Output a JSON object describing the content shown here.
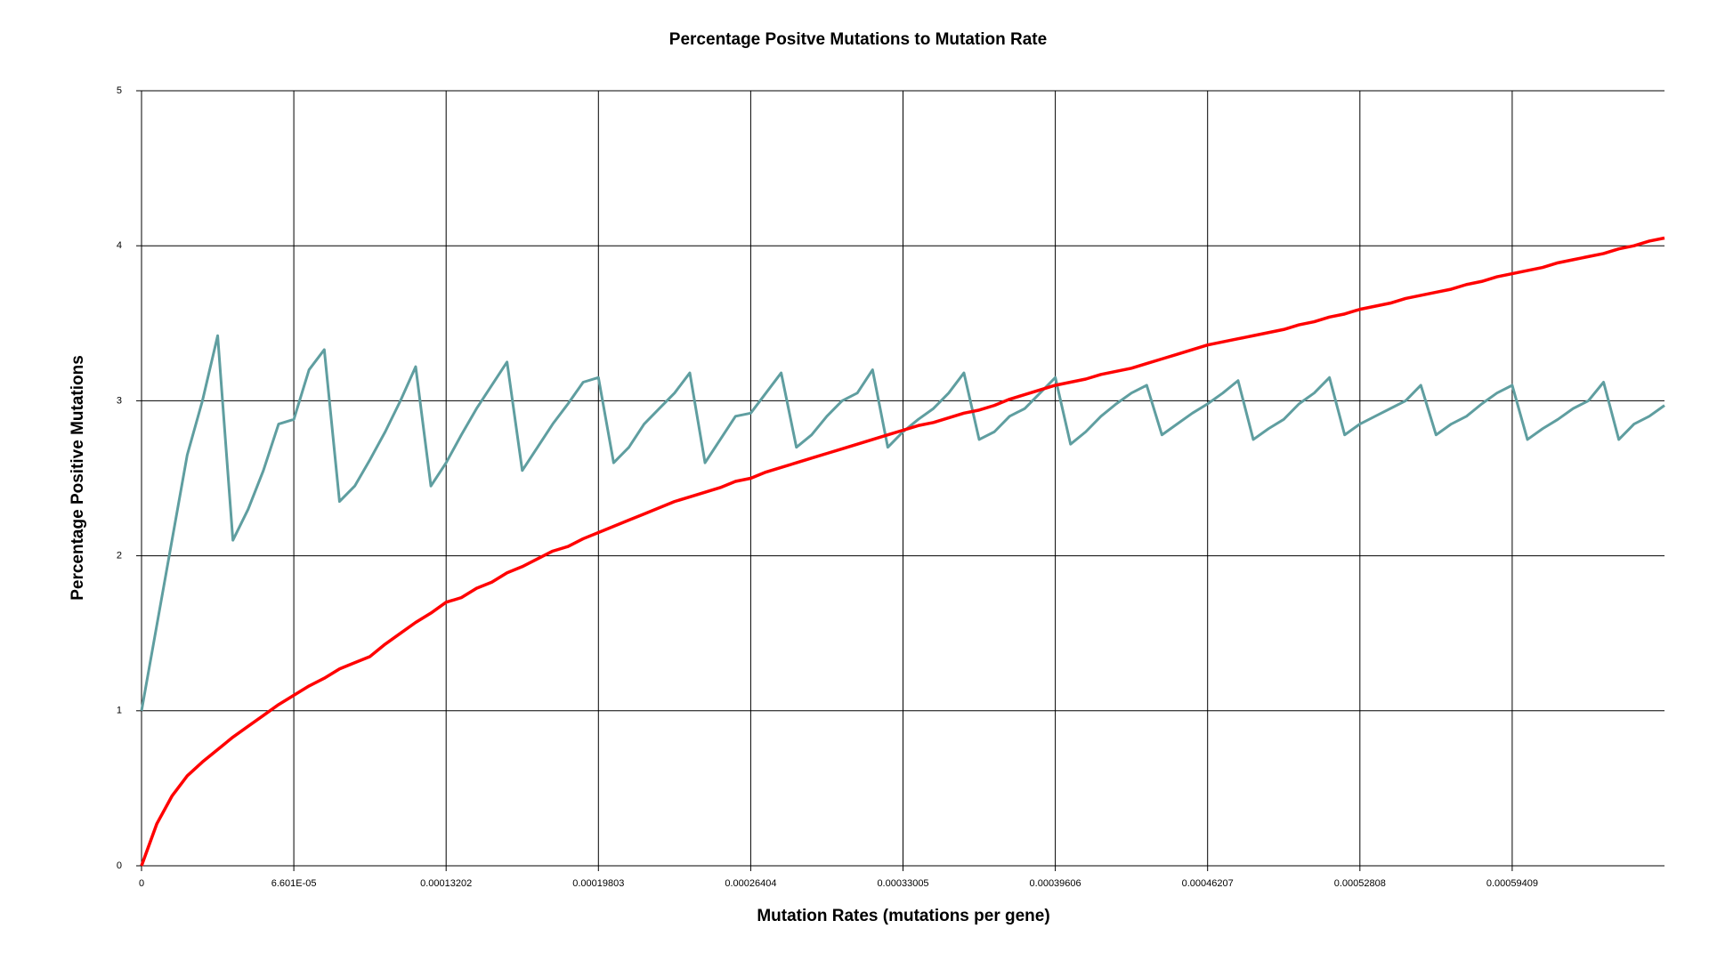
{
  "chart_data": {
    "type": "line",
    "title": "Percentage Positve Mutations to Mutation Rate",
    "x_label": "Mutation Rates (mutations per gene)",
    "y_label": "Percentage Positive Mutations",
    "x": [
      0,
      6.601e-06,
      1.3202e-05,
      1.9803e-05,
      2.6404e-05,
      3.3005e-05,
      3.9606e-05,
      4.6207e-05,
      5.2808e-05,
      5.9409e-05,
      6.601e-05,
      7.2611e-05,
      7.9212e-05,
      8.5813e-05,
      9.2414e-05,
      9.9015e-05,
      0.000105616,
      0.000112217,
      0.000118818,
      0.000125419,
      0.00013202,
      0.000138621,
      0.000145222,
      0.000151823,
      0.000158424,
      0.000165025,
      0.000171626,
      0.000178227,
      0.000184828,
      0.000191429,
      0.00019803,
      0.000204631,
      0.000211232,
      0.000217833,
      0.000224434,
      0.000231035,
      0.000237636,
      0.000244237,
      0.000250838,
      0.000257439,
      0.00026404,
      0.000270641,
      0.000277242,
      0.000283843,
      0.000290444,
      0.000297045,
      0.000303646,
      0.000310247,
      0.000316848,
      0.000323449,
      0.00033005,
      0.000336651,
      0.000343252,
      0.000349853,
      0.000356454,
      0.000363055,
      0.000369656,
      0.000376257,
      0.000382858,
      0.000389459,
      0.00039606,
      0.000402661,
      0.000409262,
      0.000415863,
      0.000422464,
      0.000429065,
      0.000435666,
      0.000442267,
      0.000448868,
      0.000455469,
      0.00046207,
      0.000468671,
      0.000475272,
      0.000481873,
      0.000488474,
      0.000495075,
      0.000501676,
      0.000508277,
      0.000514878,
      0.000521479,
      0.00052808,
      0.000534681,
      0.000541282,
      0.000547883,
      0.000554484,
      0.000561085,
      0.000567686,
      0.000574287,
      0.000580888,
      0.000587489,
      0.00059409,
      0.000600691,
      0.000607292,
      0.000613893,
      0.000620494,
      0.000627095,
      0.000633696,
      0.000640297,
      0.000646898,
      0.000653499,
      0.0006601
    ],
    "series": [
      {
        "color": "#5f9ea0",
        "values": [
          1.0,
          1.55,
          2.1,
          2.65,
          3.0,
          3.42,
          2.1,
          2.3,
          2.55,
          2.85,
          2.88,
          3.2,
          3.33,
          2.35,
          2.45,
          2.62,
          2.8,
          3.0,
          3.22,
          2.45,
          2.6,
          2.78,
          2.95,
          3.1,
          3.25,
          2.55,
          2.7,
          2.85,
          2.98,
          3.12,
          3.15,
          2.6,
          2.7,
          2.85,
          2.95,
          3.05,
          3.18,
          2.6,
          2.75,
          2.9,
          2.92,
          3.05,
          3.18,
          2.7,
          2.78,
          2.9,
          3.0,
          3.05,
          3.2,
          2.7,
          2.8,
          2.88,
          2.95,
          3.05,
          3.18,
          2.75,
          2.8,
          2.9,
          2.95,
          3.05,
          3.15,
          2.72,
          2.8,
          2.9,
          2.98,
          3.05,
          3.1,
          2.78,
          2.85,
          2.92,
          2.98,
          3.05,
          3.13,
          2.75,
          2.82,
          2.88,
          2.98,
          3.05,
          3.15,
          2.78,
          2.85,
          2.9,
          2.95,
          3.0,
          3.1,
          2.78,
          2.85,
          2.9,
          2.98,
          3.05,
          3.1,
          2.75,
          2.82,
          2.88,
          2.95,
          3.0,
          3.12,
          2.75,
          2.85,
          2.9,
          2.97
        ]
      },
      {
        "color": "#ff0000",
        "values": [
          0,
          0.27,
          0.45,
          0.58,
          0.67,
          0.75,
          0.83,
          0.9,
          0.97,
          1.04,
          1.1,
          1.16,
          1.21,
          1.27,
          1.31,
          1.35,
          1.43,
          1.5,
          1.57,
          1.63,
          1.7,
          1.73,
          1.79,
          1.83,
          1.89,
          1.93,
          1.98,
          2.03,
          2.06,
          2.11,
          2.15,
          2.19,
          2.23,
          2.27,
          2.31,
          2.35,
          2.38,
          2.41,
          2.44,
          2.48,
          2.5,
          2.54,
          2.57,
          2.6,
          2.63,
          2.66,
          2.69,
          2.72,
          2.75,
          2.78,
          2.81,
          2.84,
          2.86,
          2.89,
          2.92,
          2.94,
          2.97,
          3.01,
          3.04,
          3.07,
          3.1,
          3.12,
          3.14,
          3.17,
          3.19,
          3.21,
          3.24,
          3.27,
          3.3,
          3.33,
          3.36,
          3.38,
          3.4,
          3.42,
          3.44,
          3.46,
          3.49,
          3.51,
          3.54,
          3.56,
          3.59,
          3.61,
          3.63,
          3.66,
          3.68,
          3.7,
          3.72,
          3.75,
          3.77,
          3.8,
          3.82,
          3.84,
          3.86,
          3.89,
          3.91,
          3.93,
          3.95,
          3.98,
          4.0,
          4.03,
          4.05
        ]
      }
    ],
    "xlim": [
      0,
      0.0006601
    ],
    "xticks": [
      0,
      {
        "value": 6.601e-05,
        "label": "6.601E-05"
      },
      0.00013202,
      0.00019803,
      0.00026404,
      0.00033005,
      0.00039606,
      0.00046207,
      0.00052808,
      0.00059409
    ],
    "ylim": [
      0,
      5
    ],
    "yticks": [
      0,
      1,
      2,
      3,
      4,
      5
    ],
    "grid": true
  }
}
